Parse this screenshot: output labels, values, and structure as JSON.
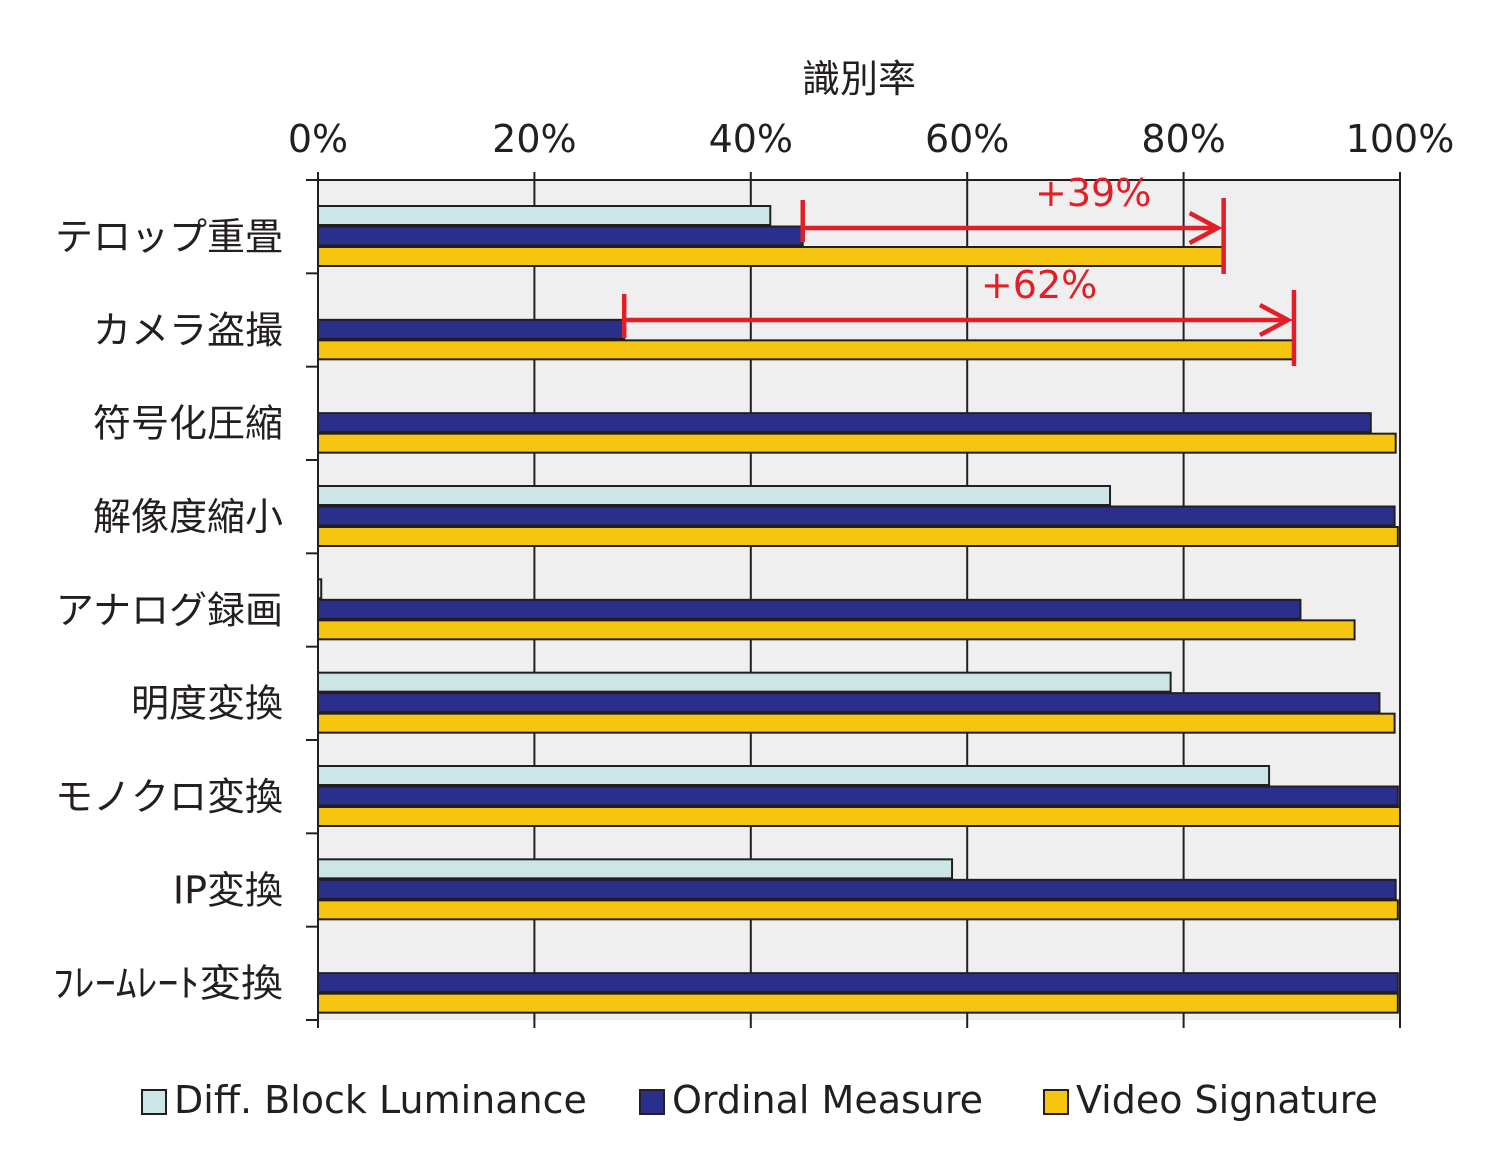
{
  "chart_data": {
    "type": "bar",
    "orientation": "horizontal",
    "xlabel": "識別率",
    "xlim": [
      0,
      100
    ],
    "x_ticks": [
      "0%",
      "20%",
      "40%",
      "60%",
      "80%",
      "100%"
    ],
    "grid": true,
    "legend_placement": "bottom",
    "categories": [
      "テロップ重畳",
      "カメラ盗撮",
      "符号化圧縮",
      "解像度縮小",
      "アナログ録画",
      "明度変換",
      "モノクロ変換",
      "IP変換",
      "ﾌﾚｰﾑﾚｰﾄ変換"
    ],
    "series": [
      {
        "name": "Diff. Block Luminance",
        "color": "#cce5e6",
        "values": [
          41.8,
          0,
          0,
          73.2,
          0.3,
          78.8,
          87.9,
          58.6,
          0
        ]
      },
      {
        "name": "Ordinal Measure",
        "color": "#2b2f8c",
        "values": [
          44.8,
          28.3,
          97.3,
          99.5,
          90.8,
          98.1,
          99.8,
          99.6,
          99.8
        ]
      },
      {
        "name": "Video Signature",
        "color": "#f5c510",
        "values": [
          83.7,
          90.2,
          99.6,
          99.8,
          95.8,
          99.5,
          100,
          99.8,
          99.8
        ]
      }
    ],
    "annotations": [
      {
        "text": "+39%",
        "category": "テロップ重畳",
        "from": 44.8,
        "to": 83.7,
        "color": "#e41e26"
      },
      {
        "text": "+62%",
        "category": "カメラ盗撮",
        "from": 28.3,
        "to": 90.2,
        "color": "#e41e26"
      }
    ],
    "plot_background": "#efefef"
  }
}
